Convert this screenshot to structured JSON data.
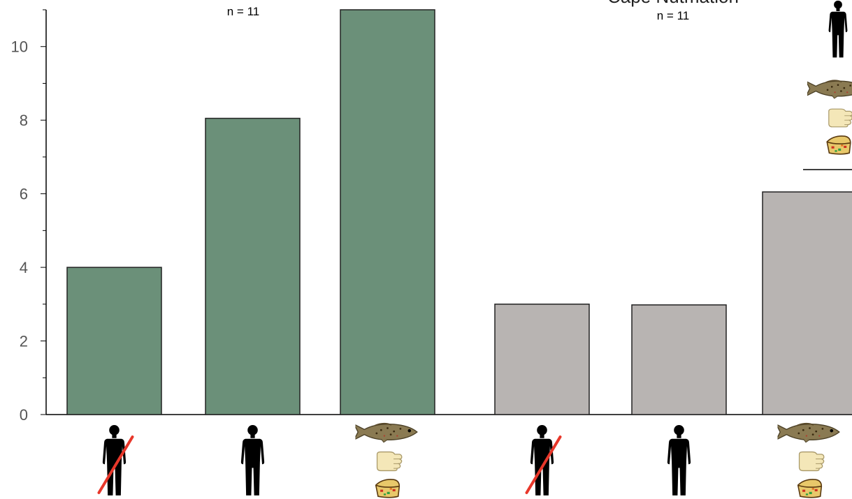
{
  "chart_data": {
    "type": "bar",
    "title": "",
    "xlabel": "",
    "ylabel": "",
    "ylim": [
      0,
      11
    ],
    "yticks": [
      0,
      2,
      4,
      6,
      8,
      10
    ],
    "grid": false,
    "groups": [
      {
        "title": "",
        "n_label": "n = 11",
        "color": "#6b9079",
        "bars": [
          {
            "condition_icons": [
              "crossed-out-person-icon"
            ],
            "value": 4.0
          },
          {
            "condition_icons": [
              "person-icon"
            ],
            "value": 8.05
          },
          {
            "condition_icons": [
              "fish-icon",
              "glove-icon",
              "cake-icon"
            ],
            "value": 11.0
          }
        ]
      },
      {
        "title": "Cape Nutmation",
        "n_label": "n = 11",
        "color": "#b8b4b2",
        "bars": [
          {
            "condition_icons": [
              "crossed-out-person-icon"
            ],
            "value": 3.0
          },
          {
            "condition_icons": [
              "person-icon"
            ],
            "value": 2.98
          },
          {
            "condition_icons": [
              "fish-icon",
              "glove-icon",
              "cake-icon"
            ],
            "value": 6.05
          }
        ]
      }
    ],
    "legend": {
      "placement": "top-right",
      "icons": [
        "person-icon",
        "fish-icon",
        "glove-icon",
        "cake-icon"
      ]
    }
  }
}
